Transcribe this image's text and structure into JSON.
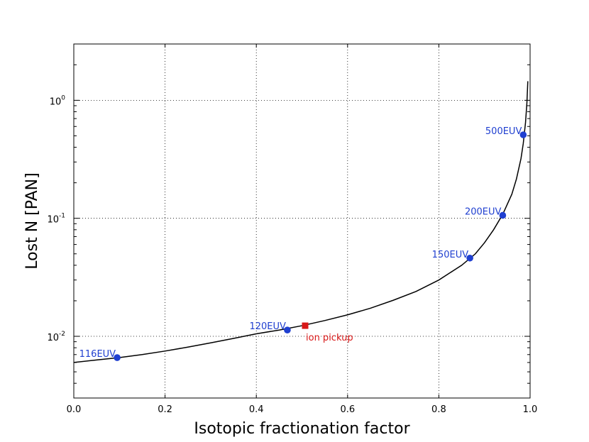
{
  "chart_data": {
    "type": "line",
    "title": "",
    "xlabel": "Isotopic fractionation factor",
    "ylabel": "Lost N [PAN]",
    "xlim": [
      0.0,
      1.0
    ],
    "ylim": [
      0.003,
      3.0
    ],
    "yscale": "log",
    "grid": true,
    "legend": "none",
    "x_ticks": [
      {
        "value": 0.0,
        "label": "0.0"
      },
      {
        "value": 0.2,
        "label": "0.2"
      },
      {
        "value": 0.4,
        "label": "0.4"
      },
      {
        "value": 0.6,
        "label": "0.6"
      },
      {
        "value": 0.8,
        "label": "0.8"
      },
      {
        "value": 1.0,
        "label": "1.0"
      }
    ],
    "y_ticks": [
      {
        "value": 0.01,
        "base": "10",
        "exp": "-2"
      },
      {
        "value": 0.1,
        "base": "10",
        "exp": "-1"
      },
      {
        "value": 1.0,
        "base": "10",
        "exp": "0"
      }
    ],
    "series": [
      {
        "color": "#000000",
        "x": [
          0.0,
          0.05,
          0.1,
          0.15,
          0.2,
          0.25,
          0.3,
          0.35,
          0.4,
          0.45,
          0.5,
          0.55,
          0.6,
          0.65,
          0.7,
          0.75,
          0.8,
          0.85,
          0.88,
          0.9,
          0.92,
          0.94,
          0.96,
          0.97,
          0.98,
          0.985,
          0.99,
          0.993,
          0.995
        ],
        "y": [
          0.006,
          0.0063,
          0.0066,
          0.007,
          0.0075,
          0.0081,
          0.0088,
          0.0096,
          0.0105,
          0.0113,
          0.0123,
          0.0136,
          0.0152,
          0.0173,
          0.0202,
          0.024,
          0.03,
          0.04,
          0.05,
          0.062,
          0.08,
          0.108,
          0.16,
          0.215,
          0.32,
          0.43,
          0.65,
          0.95,
          1.45
        ]
      }
    ],
    "points": [
      {
        "label": "116EUV",
        "x": 0.095,
        "y": 0.0066,
        "color": "#1f3fd0",
        "marker": "circle"
      },
      {
        "label": "120EUV",
        "x": 0.468,
        "y": 0.0113,
        "color": "#1f3fd0",
        "marker": "circle"
      },
      {
        "label": "150EUV",
        "x": 0.868,
        "y": 0.046,
        "color": "#1f3fd0",
        "marker": "circle"
      },
      {
        "label": "200EUV",
        "x": 0.94,
        "y": 0.106,
        "color": "#1f3fd0",
        "marker": "circle"
      },
      {
        "label": "500EUV",
        "x": 0.985,
        "y": 0.51,
        "color": "#1f3fd0",
        "marker": "circle"
      },
      {
        "label": "ion pickup",
        "x": 0.507,
        "y": 0.0123,
        "color": "#d81818",
        "marker": "square"
      }
    ]
  }
}
